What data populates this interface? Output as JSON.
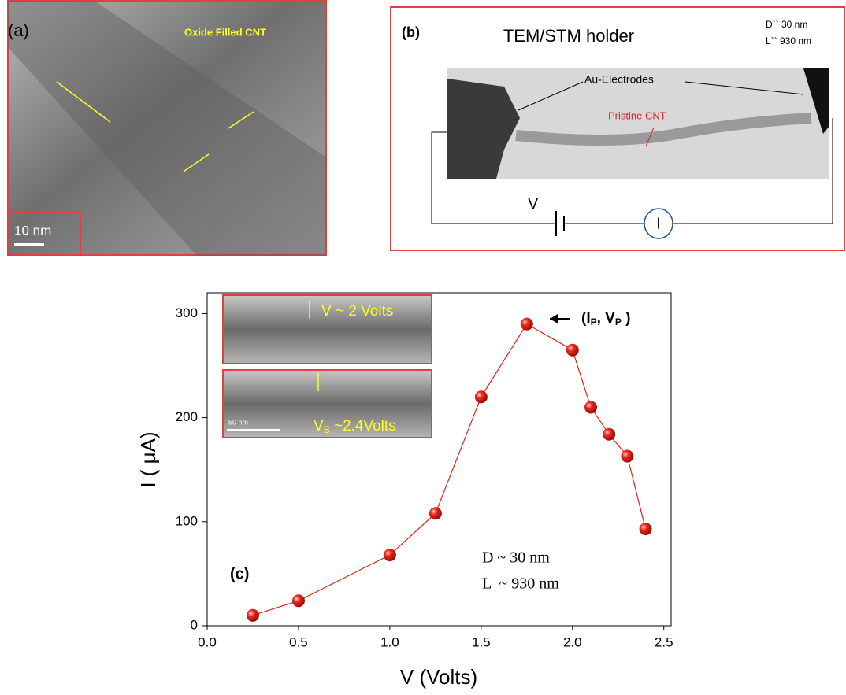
{
  "panels": {
    "a": {
      "label": "(a)",
      "caption": "Oxide Filled CNT",
      "scale": "10 nm"
    },
    "b": {
      "label": "(b)",
      "title": "TEM/STM holder",
      "d_note": "D`` 30 nm",
      "l_note": "L`` 930 nm",
      "electrodes": "Au-Electrodes",
      "cnt": "Pristine CNT",
      "voltage": "V",
      "current": "I"
    }
  },
  "chart_data": {
    "type": "line",
    "panel_label": "(c)",
    "x_label": "V (Volts)",
    "y_label": "I ( μA)",
    "x": [
      0.25,
      0.5,
      1.0,
      1.25,
      1.5,
      1.75,
      2.0,
      2.1,
      2.2,
      2.3,
      2.4
    ],
    "series": [
      {
        "color": "#e8201a",
        "values": [
          10,
          24,
          68,
          108,
          220,
          290,
          265,
          210,
          184,
          163,
          93
        ]
      }
    ],
    "xlim": [
      0,
      2.54
    ],
    "ylim": [
      0,
      320
    ],
    "xticks": [
      {
        "value": 0,
        "label": "0.0"
      },
      0.5,
      {
        "value": 1,
        "label": "1.0"
      },
      1.5,
      {
        "value": 2,
        "label": "2.0"
      },
      2.5
    ],
    "yticks": [
      0,
      100,
      200,
      300
    ],
    "grid": false,
    "peak_label": [
      "(I",
      "P",
      ", V",
      "P",
      " )"
    ],
    "notes": [
      "D ~ 30 nm",
      "L  ~ 930 nm"
    ],
    "insets": {
      "top": "V ~ 2 Volts",
      "bottom": [
        "V",
        "B",
        " ~2.4Volts"
      ],
      "scale": "50 nm"
    }
  }
}
